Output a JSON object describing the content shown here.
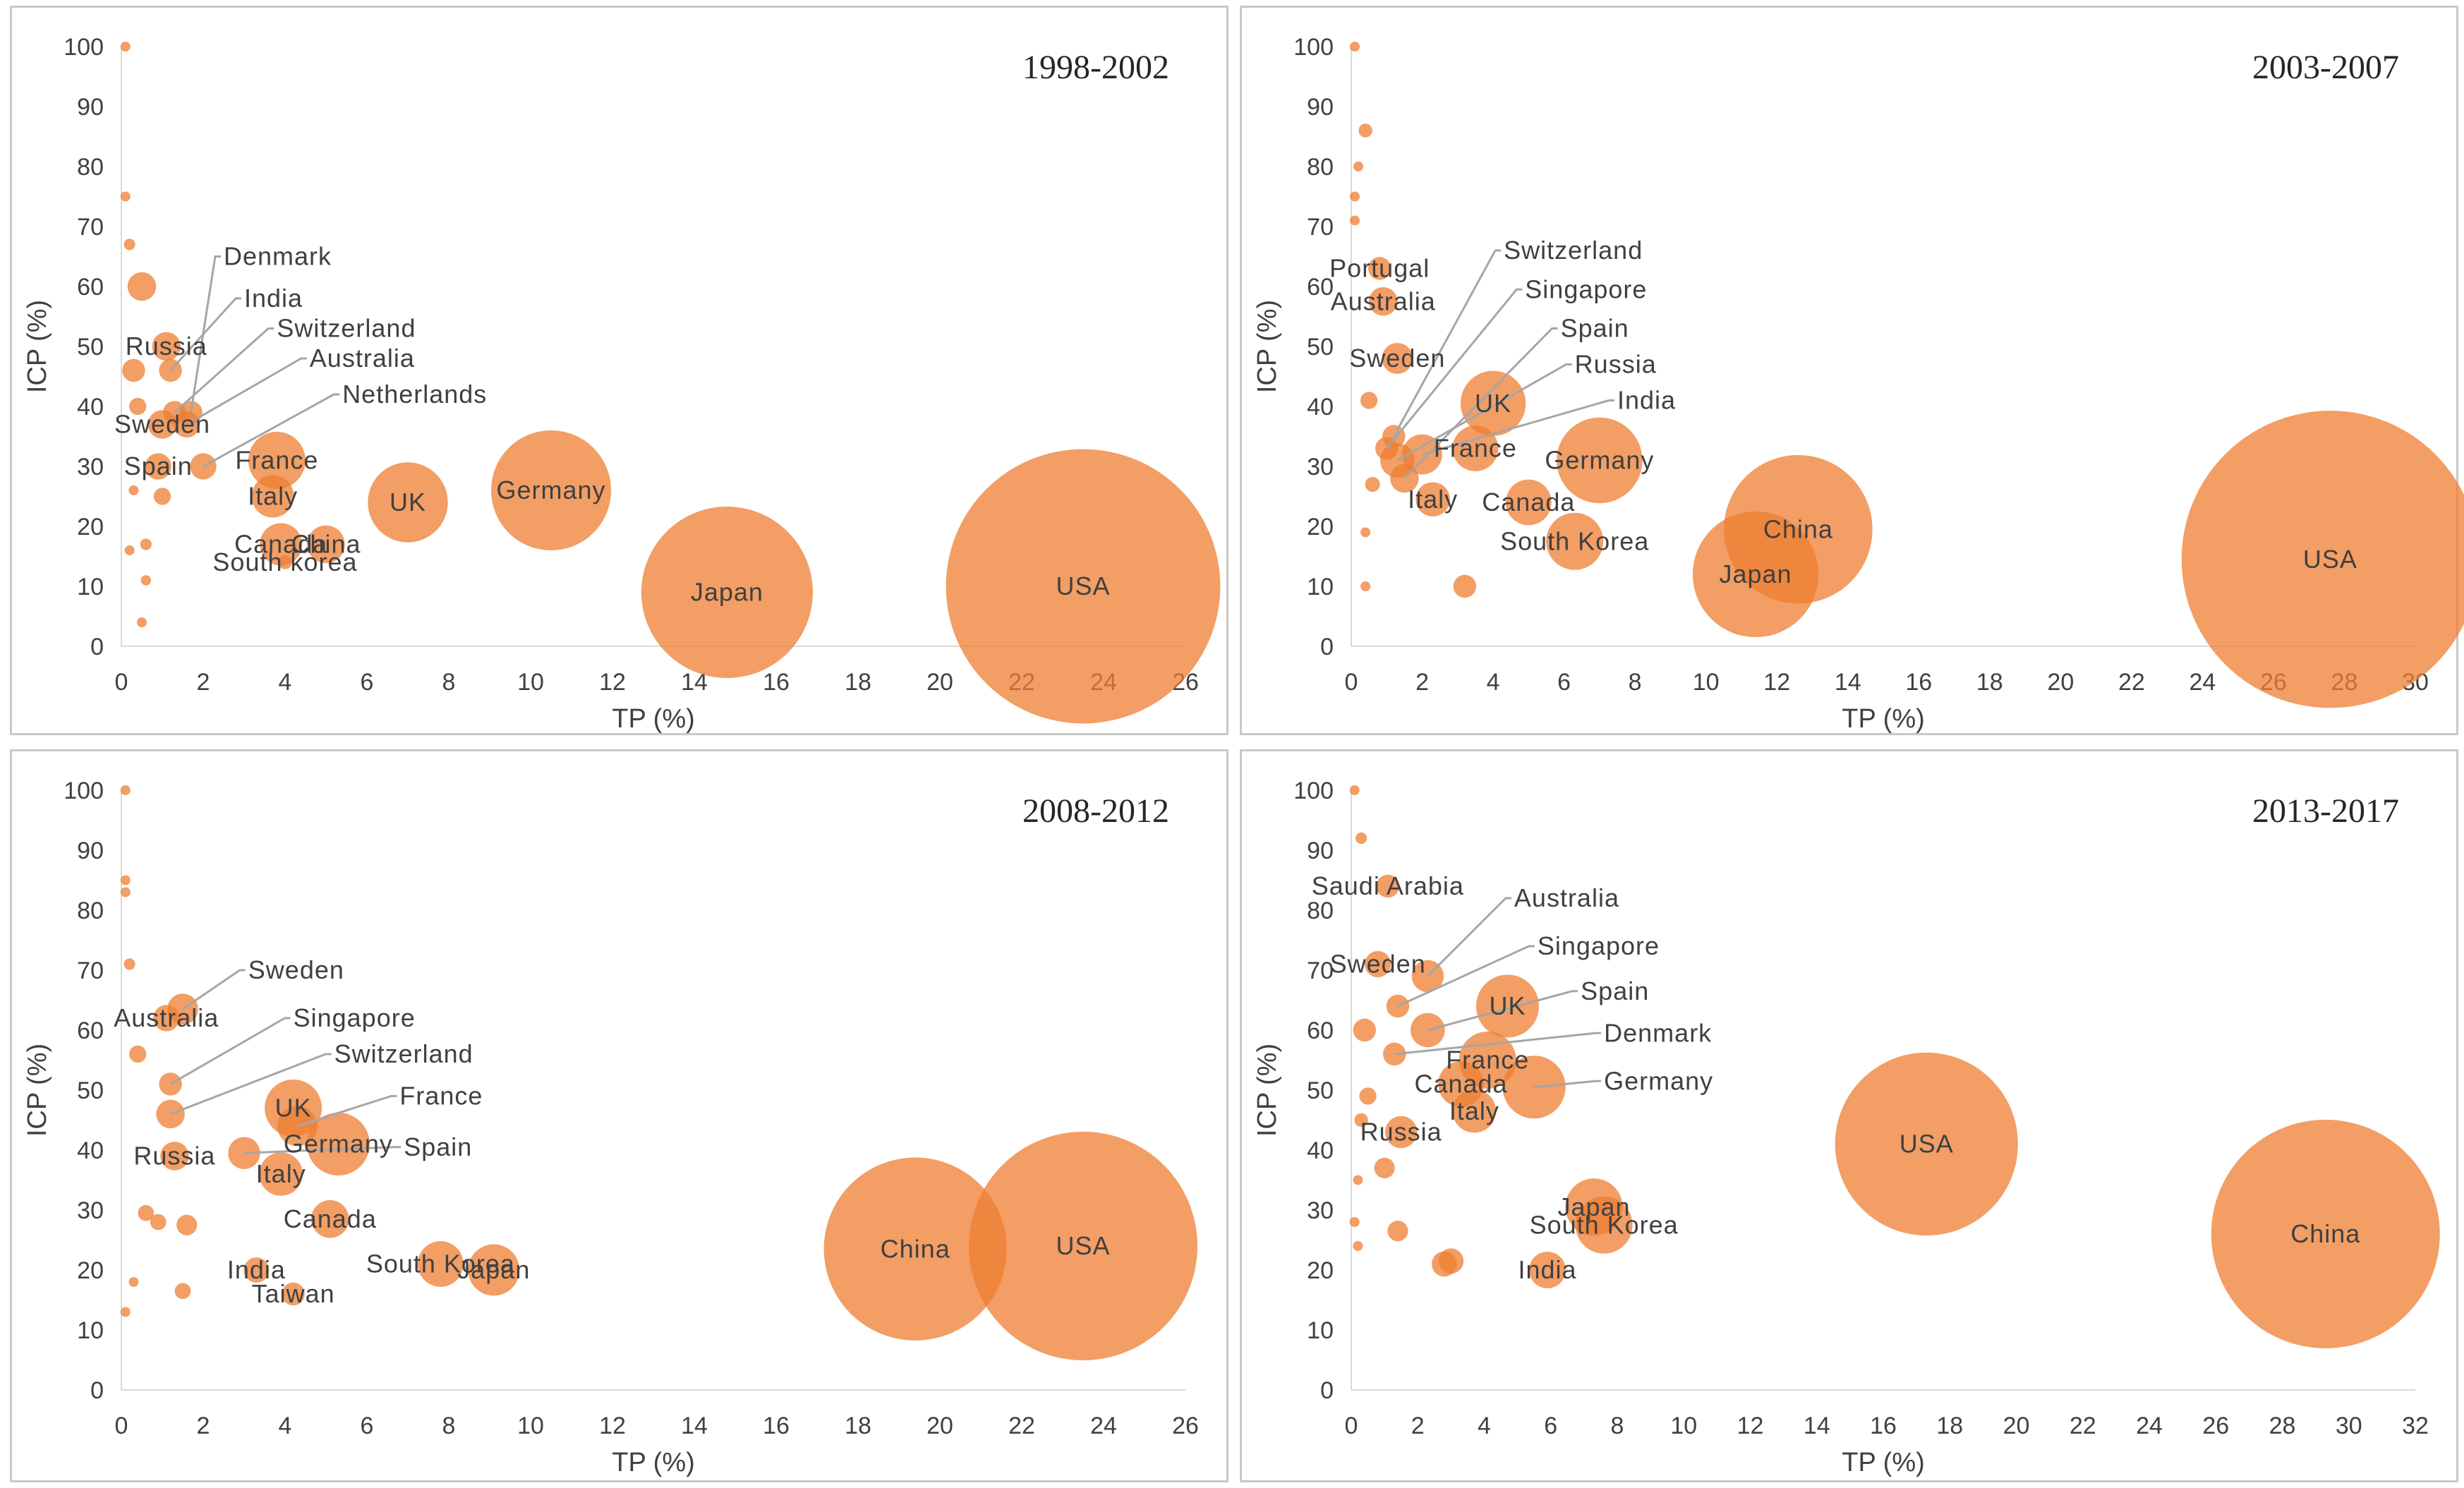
{
  "colors": {
    "bubble": "#ed7d31",
    "bubble_opacity": 0.75,
    "leader_line": "#a6a6a6",
    "text": "#404040",
    "border": "#c8c8c8"
  },
  "chart_data": [
    {
      "type": "bubble",
      "title": "1998-2002",
      "xlabel": "TP (%)",
      "ylabel": "ICP (%)",
      "xlim": [
        0,
        26
      ],
      "ylim": [
        0,
        100
      ],
      "x_ticks": [
        0,
        2,
        4,
        6,
        8,
        10,
        12,
        14,
        16,
        18,
        20,
        22,
        24,
        26
      ],
      "y_ticks": [
        0,
        10,
        20,
        30,
        40,
        50,
        60,
        70,
        80,
        90,
        100
      ],
      "points": [
        {
          "label": "USA",
          "x": 23.5,
          "y": 10,
          "size": 24
        },
        {
          "label": "Japan",
          "x": 14.8,
          "y": 9,
          "size": 15
        },
        {
          "label": "Germany",
          "x": 10.5,
          "y": 26,
          "size": 10.5
        },
        {
          "label": "UK",
          "x": 7,
          "y": 24,
          "size": 7
        },
        {
          "label": "France",
          "x": 3.8,
          "y": 31,
          "size": 5
        },
        {
          "label": "Italy",
          "x": 3.7,
          "y": 25,
          "size": 3.7
        },
        {
          "label": "China",
          "x": 5,
          "y": 17,
          "size": 3.3
        },
        {
          "label": "Canada",
          "x": 3.9,
          "y": 17,
          "size": 3.7
        },
        {
          "label": "South korea",
          "x": 4,
          "y": 14,
          "size": 1.2
        },
        {
          "label": "Netherlands",
          "x": 2,
          "y": 30,
          "size": 2.3
        },
        {
          "label": "Australia",
          "x": 1.6,
          "y": 37,
          "size": 2.3
        },
        {
          "label": "Switzerland",
          "x": 1.3,
          "y": 39,
          "size": 2
        },
        {
          "label": "India",
          "x": 1.2,
          "y": 46,
          "size": 2
        },
        {
          "label": "Denmark",
          "x": 1.7,
          "y": 39,
          "size": 2
        },
        {
          "label": "Russia",
          "x": 1.1,
          "y": 50,
          "size": 2.5
        },
        {
          "label": "Sweden",
          "x": 1,
          "y": 37,
          "size": 2.5
        },
        {
          "label": "Spain",
          "x": 0.9,
          "y": 30,
          "size": 2.3
        },
        {
          "label": "",
          "x": 0.5,
          "y": 60,
          "size": 2.5
        },
        {
          "label": "",
          "x": 0.3,
          "y": 46,
          "size": 2
        },
        {
          "label": "",
          "x": 0.4,
          "y": 40,
          "size": 1.5
        },
        {
          "label": "",
          "x": 0.2,
          "y": 67,
          "size": 1
        },
        {
          "label": "",
          "x": 0.1,
          "y": 75,
          "size": 0.8
        },
        {
          "label": "",
          "x": 0.1,
          "y": 100,
          "size": 0.6
        },
        {
          "label": "",
          "x": 1,
          "y": 25,
          "size": 1.5
        },
        {
          "label": "",
          "x": 0.3,
          "y": 26,
          "size": 0.8
        },
        {
          "label": "",
          "x": 0.6,
          "y": 17,
          "size": 1
        },
        {
          "label": "",
          "x": 0.2,
          "y": 16,
          "size": 0.5
        },
        {
          "label": "",
          "x": 0.6,
          "y": 11,
          "size": 0.9
        },
        {
          "label": "",
          "x": 0.5,
          "y": 4,
          "size": 0.6
        }
      ],
      "callouts": [
        {
          "text": "Denmark",
          "x": 2.5,
          "y": 65
        },
        {
          "text": "India",
          "x": 3,
          "y": 58
        },
        {
          "text": "Switzerland",
          "x": 3.8,
          "y": 53
        },
        {
          "text": "Australia",
          "x": 4.6,
          "y": 48
        },
        {
          "text": "Netherlands",
          "x": 5.4,
          "y": 42
        }
      ]
    },
    {
      "type": "bubble",
      "title": "2003-2007",
      "xlabel": "TP (%)",
      "ylabel": "ICP (%)",
      "xlim": [
        0,
        30
      ],
      "ylim": [
        0,
        100
      ],
      "x_ticks": [
        0,
        2,
        4,
        6,
        8,
        10,
        12,
        14,
        16,
        18,
        20,
        22,
        24,
        26,
        28,
        30
      ],
      "y_ticks": [
        0,
        10,
        20,
        30,
        40,
        50,
        60,
        70,
        80,
        90,
        100
      ],
      "points": [
        {
          "label": "USA",
          "x": 27.6,
          "y": 14.5,
          "size": 26
        },
        {
          "label": "China",
          "x": 12.6,
          "y": 19.5,
          "size": 13
        },
        {
          "label": "Japan",
          "x": 11.4,
          "y": 12,
          "size": 11
        },
        {
          "label": "Germany",
          "x": 7,
          "y": 31,
          "size": 7.5
        },
        {
          "label": "South Korea",
          "x": 6.3,
          "y": 17.5,
          "size": 5
        },
        {
          "label": "UK",
          "x": 4,
          "y": 40.5,
          "size": 5.7
        },
        {
          "label": "France",
          "x": 3.5,
          "y": 33,
          "size": 4
        },
        {
          "label": "Canada",
          "x": 5,
          "y": 24,
          "size": 4
        },
        {
          "label": "Italy",
          "x": 2.3,
          "y": 24.5,
          "size": 3
        },
        {
          "label": "Sweden",
          "x": 1.3,
          "y": 48,
          "size": 2.7
        },
        {
          "label": "Portugal",
          "x": 0.8,
          "y": 63,
          "size": 2
        },
        {
          "label": "Australia",
          "x": 0.9,
          "y": 57.5,
          "size": 2.5
        },
        {
          "label": "Russia",
          "x": 1.3,
          "y": 31,
          "size": 3
        },
        {
          "label": "India",
          "x": 2,
          "y": 32,
          "size": 3.5
        },
        {
          "label": "Spain",
          "x": 1.5,
          "y": 28,
          "size": 2.5
        },
        {
          "label": "Singapore",
          "x": 1,
          "y": 33,
          "size": 2
        },
        {
          "label": "Switzerland",
          "x": 1.2,
          "y": 35,
          "size": 2
        },
        {
          "label": "",
          "x": 3.2,
          "y": 10,
          "size": 2
        },
        {
          "label": "",
          "x": 0.4,
          "y": 86,
          "size": 1.2
        },
        {
          "label": "",
          "x": 0.2,
          "y": 80,
          "size": 0.7
        },
        {
          "label": "",
          "x": 0.1,
          "y": 75,
          "size": 0.4
        },
        {
          "label": "",
          "x": 0.1,
          "y": 71,
          "size": 0.4
        },
        {
          "label": "",
          "x": 0.1,
          "y": 100,
          "size": 0.4
        },
        {
          "label": "",
          "x": 0.4,
          "y": 19,
          "size": 0.8
        },
        {
          "label": "",
          "x": 0.4,
          "y": 10,
          "size": 0.8
        },
        {
          "label": "",
          "x": 0.6,
          "y": 27,
          "size": 1.3
        },
        {
          "label": "",
          "x": 0.5,
          "y": 41,
          "size": 1.5
        }
      ],
      "callouts": [
        {
          "text": "Switzerland",
          "x": 4.3,
          "y": 66
        },
        {
          "text": "Singapore",
          "x": 4.9,
          "y": 59.5
        },
        {
          "text": "Spain",
          "x": 5.9,
          "y": 53
        },
        {
          "text": "Russia",
          "x": 6.3,
          "y": 47
        },
        {
          "text": "India",
          "x": 7.5,
          "y": 41
        }
      ]
    },
    {
      "type": "bubble",
      "title": "2008-2012",
      "xlabel": "TP (%)",
      "ylabel": "ICP (%)",
      "xlim": [
        0,
        26
      ],
      "ylim": [
        0,
        100
      ],
      "x_ticks": [
        0,
        2,
        4,
        6,
        8,
        10,
        12,
        14,
        16,
        18,
        20,
        22,
        24,
        26
      ],
      "y_ticks": [
        0,
        10,
        20,
        30,
        40,
        50,
        60,
        70,
        80,
        90,
        100
      ],
      "points": [
        {
          "label": "USA",
          "x": 23.5,
          "y": 24,
          "size": 20
        },
        {
          "label": "China",
          "x": 19.4,
          "y": 23.5,
          "size": 16
        },
        {
          "label": "Japan",
          "x": 9.1,
          "y": 20,
          "size": 4.5
        },
        {
          "label": "South Korea",
          "x": 7.8,
          "y": 21,
          "size": 4
        },
        {
          "label": "Germany",
          "x": 5.3,
          "y": 41,
          "size": 5.5
        },
        {
          "label": "UK",
          "x": 4.2,
          "y": 47,
          "size": 5
        },
        {
          "label": "France",
          "x": 4.3,
          "y": 44,
          "size": 3.5
        },
        {
          "label": "Italy",
          "x": 3.9,
          "y": 36,
          "size": 3.8
        },
        {
          "label": "Canada",
          "x": 5.1,
          "y": 28.5,
          "size": 3.3
        },
        {
          "label": "Spain",
          "x": 3,
          "y": 39.5,
          "size": 2.8
        },
        {
          "label": "Sweden",
          "x": 1.5,
          "y": 63.5,
          "size": 2.7
        },
        {
          "label": "Australia",
          "x": 1.1,
          "y": 62,
          "size": 2.3
        },
        {
          "label": "Singapore",
          "x": 1.2,
          "y": 51,
          "size": 2
        },
        {
          "label": "Switzerland",
          "x": 1.2,
          "y": 46,
          "size": 2.5
        },
        {
          "label": "Russia",
          "x": 1.3,
          "y": 39,
          "size": 2.5
        },
        {
          "label": "India",
          "x": 3.3,
          "y": 20,
          "size": 2.2
        },
        {
          "label": "Taiwan",
          "x": 4.2,
          "y": 16,
          "size": 2
        },
        {
          "label": "",
          "x": 1.6,
          "y": 27.5,
          "size": 1.8
        },
        {
          "label": "",
          "x": 1.5,
          "y": 16.5,
          "size": 1.4
        },
        {
          "label": "",
          "x": 0.6,
          "y": 29.5,
          "size": 1.4
        },
        {
          "label": "",
          "x": 0.9,
          "y": 28,
          "size": 1.4
        },
        {
          "label": "",
          "x": 0.2,
          "y": 71,
          "size": 1
        },
        {
          "label": "",
          "x": 0.1,
          "y": 85,
          "size": 0.6
        },
        {
          "label": "",
          "x": 0.1,
          "y": 83,
          "size": 0.6
        },
        {
          "label": "",
          "x": 0.1,
          "y": 100,
          "size": 0.5
        },
        {
          "label": "",
          "x": 0.4,
          "y": 56,
          "size": 1.5
        },
        {
          "label": "",
          "x": 0.3,
          "y": 18,
          "size": 0.4
        },
        {
          "label": "",
          "x": 0.1,
          "y": 13,
          "size": 0.3
        }
      ],
      "callouts": [
        {
          "text": "Sweden",
          "x": 3.1,
          "y": 70
        },
        {
          "text": "Singapore",
          "x": 4.2,
          "y": 62
        },
        {
          "text": "Switzerland",
          "x": 5.2,
          "y": 56
        },
        {
          "text": "France",
          "x": 6.8,
          "y": 49
        },
        {
          "text": "Spain",
          "x": 6.9,
          "y": 40.5
        }
      ]
    },
    {
      "type": "bubble",
      "title": "2013-2017",
      "xlabel": "TP (%)",
      "ylabel": "ICP (%)",
      "xlim": [
        0,
        32
      ],
      "ylim": [
        0,
        100
      ],
      "x_ticks": [
        0,
        2,
        4,
        6,
        8,
        10,
        12,
        14,
        16,
        18,
        20,
        22,
        24,
        26,
        28,
        30,
        32
      ],
      "y_ticks": [
        0,
        10,
        20,
        30,
        40,
        50,
        60,
        70,
        80,
        90,
        100
      ],
      "points": [
        {
          "label": "China",
          "x": 29.3,
          "y": 26,
          "size": 20
        },
        {
          "label": "USA",
          "x": 17.3,
          "y": 41,
          "size": 16
        },
        {
          "label": "Japan",
          "x": 7.3,
          "y": 30.5,
          "size": 5
        },
        {
          "label": "South Korea",
          "x": 7.6,
          "y": 27.5,
          "size": 5
        },
        {
          "label": "India",
          "x": 5.9,
          "y": 20,
          "size": 3.2
        },
        {
          "label": "UK",
          "x": 4.7,
          "y": 64,
          "size": 5.5
        },
        {
          "label": "Germany",
          "x": 5.5,
          "y": 50.5,
          "size": 5.5
        },
        {
          "label": "France",
          "x": 4.1,
          "y": 55,
          "size": 5
        },
        {
          "label": "Canada",
          "x": 3.3,
          "y": 51,
          "size": 4
        },
        {
          "label": "Italy",
          "x": 3.7,
          "y": 46.5,
          "size": 3.8
        },
        {
          "label": "Spain",
          "x": 2.3,
          "y": 60,
          "size": 3
        },
        {
          "label": "Australia",
          "x": 2.3,
          "y": 69,
          "size": 2.8
        },
        {
          "label": "Singapore",
          "x": 1.4,
          "y": 64,
          "size": 2
        },
        {
          "label": "Sweden",
          "x": 0.8,
          "y": 71,
          "size": 2.3
        },
        {
          "label": "Saudi Arabia",
          "x": 1.1,
          "y": 84,
          "size": 2
        },
        {
          "label": "Russia",
          "x": 1.5,
          "y": 43,
          "size": 2.8
        },
        {
          "label": "Denmark",
          "x": 1.3,
          "y": 56,
          "size": 2
        },
        {
          "label": "",
          "x": 2.8,
          "y": 21,
          "size": 2.2
        },
        {
          "label": "",
          "x": 3,
          "y": 21.5,
          "size": 2.2
        },
        {
          "label": "",
          "x": 1.4,
          "y": 26.5,
          "size": 1.8
        },
        {
          "label": "",
          "x": 1,
          "y": 37,
          "size": 1.8
        },
        {
          "label": "",
          "x": 0.5,
          "y": 49,
          "size": 1.5
        },
        {
          "label": "",
          "x": 0.3,
          "y": 92,
          "size": 1
        },
        {
          "label": "",
          "x": 0.1,
          "y": 100,
          "size": 0.5
        },
        {
          "label": "",
          "x": 0.2,
          "y": 35,
          "size": 0.8
        },
        {
          "label": "",
          "x": 0.2,
          "y": 24,
          "size": 0.5
        },
        {
          "label": "",
          "x": 0.1,
          "y": 28,
          "size": 0.4
        },
        {
          "label": "",
          "x": 0.4,
          "y": 60,
          "size": 2
        },
        {
          "label": "",
          "x": 0.3,
          "y": 45,
          "size": 1.2
        }
      ],
      "callouts": [
        {
          "text": "Australia",
          "x": 4.9,
          "y": 82
        },
        {
          "text": "Singapore",
          "x": 5.6,
          "y": 74
        },
        {
          "text": "Spain",
          "x": 6.9,
          "y": 66.5
        },
        {
          "text": "Denmark",
          "x": 7.6,
          "y": 59.5
        },
        {
          "text": "Germany",
          "x": 7.6,
          "y": 51.5
        }
      ]
    }
  ]
}
